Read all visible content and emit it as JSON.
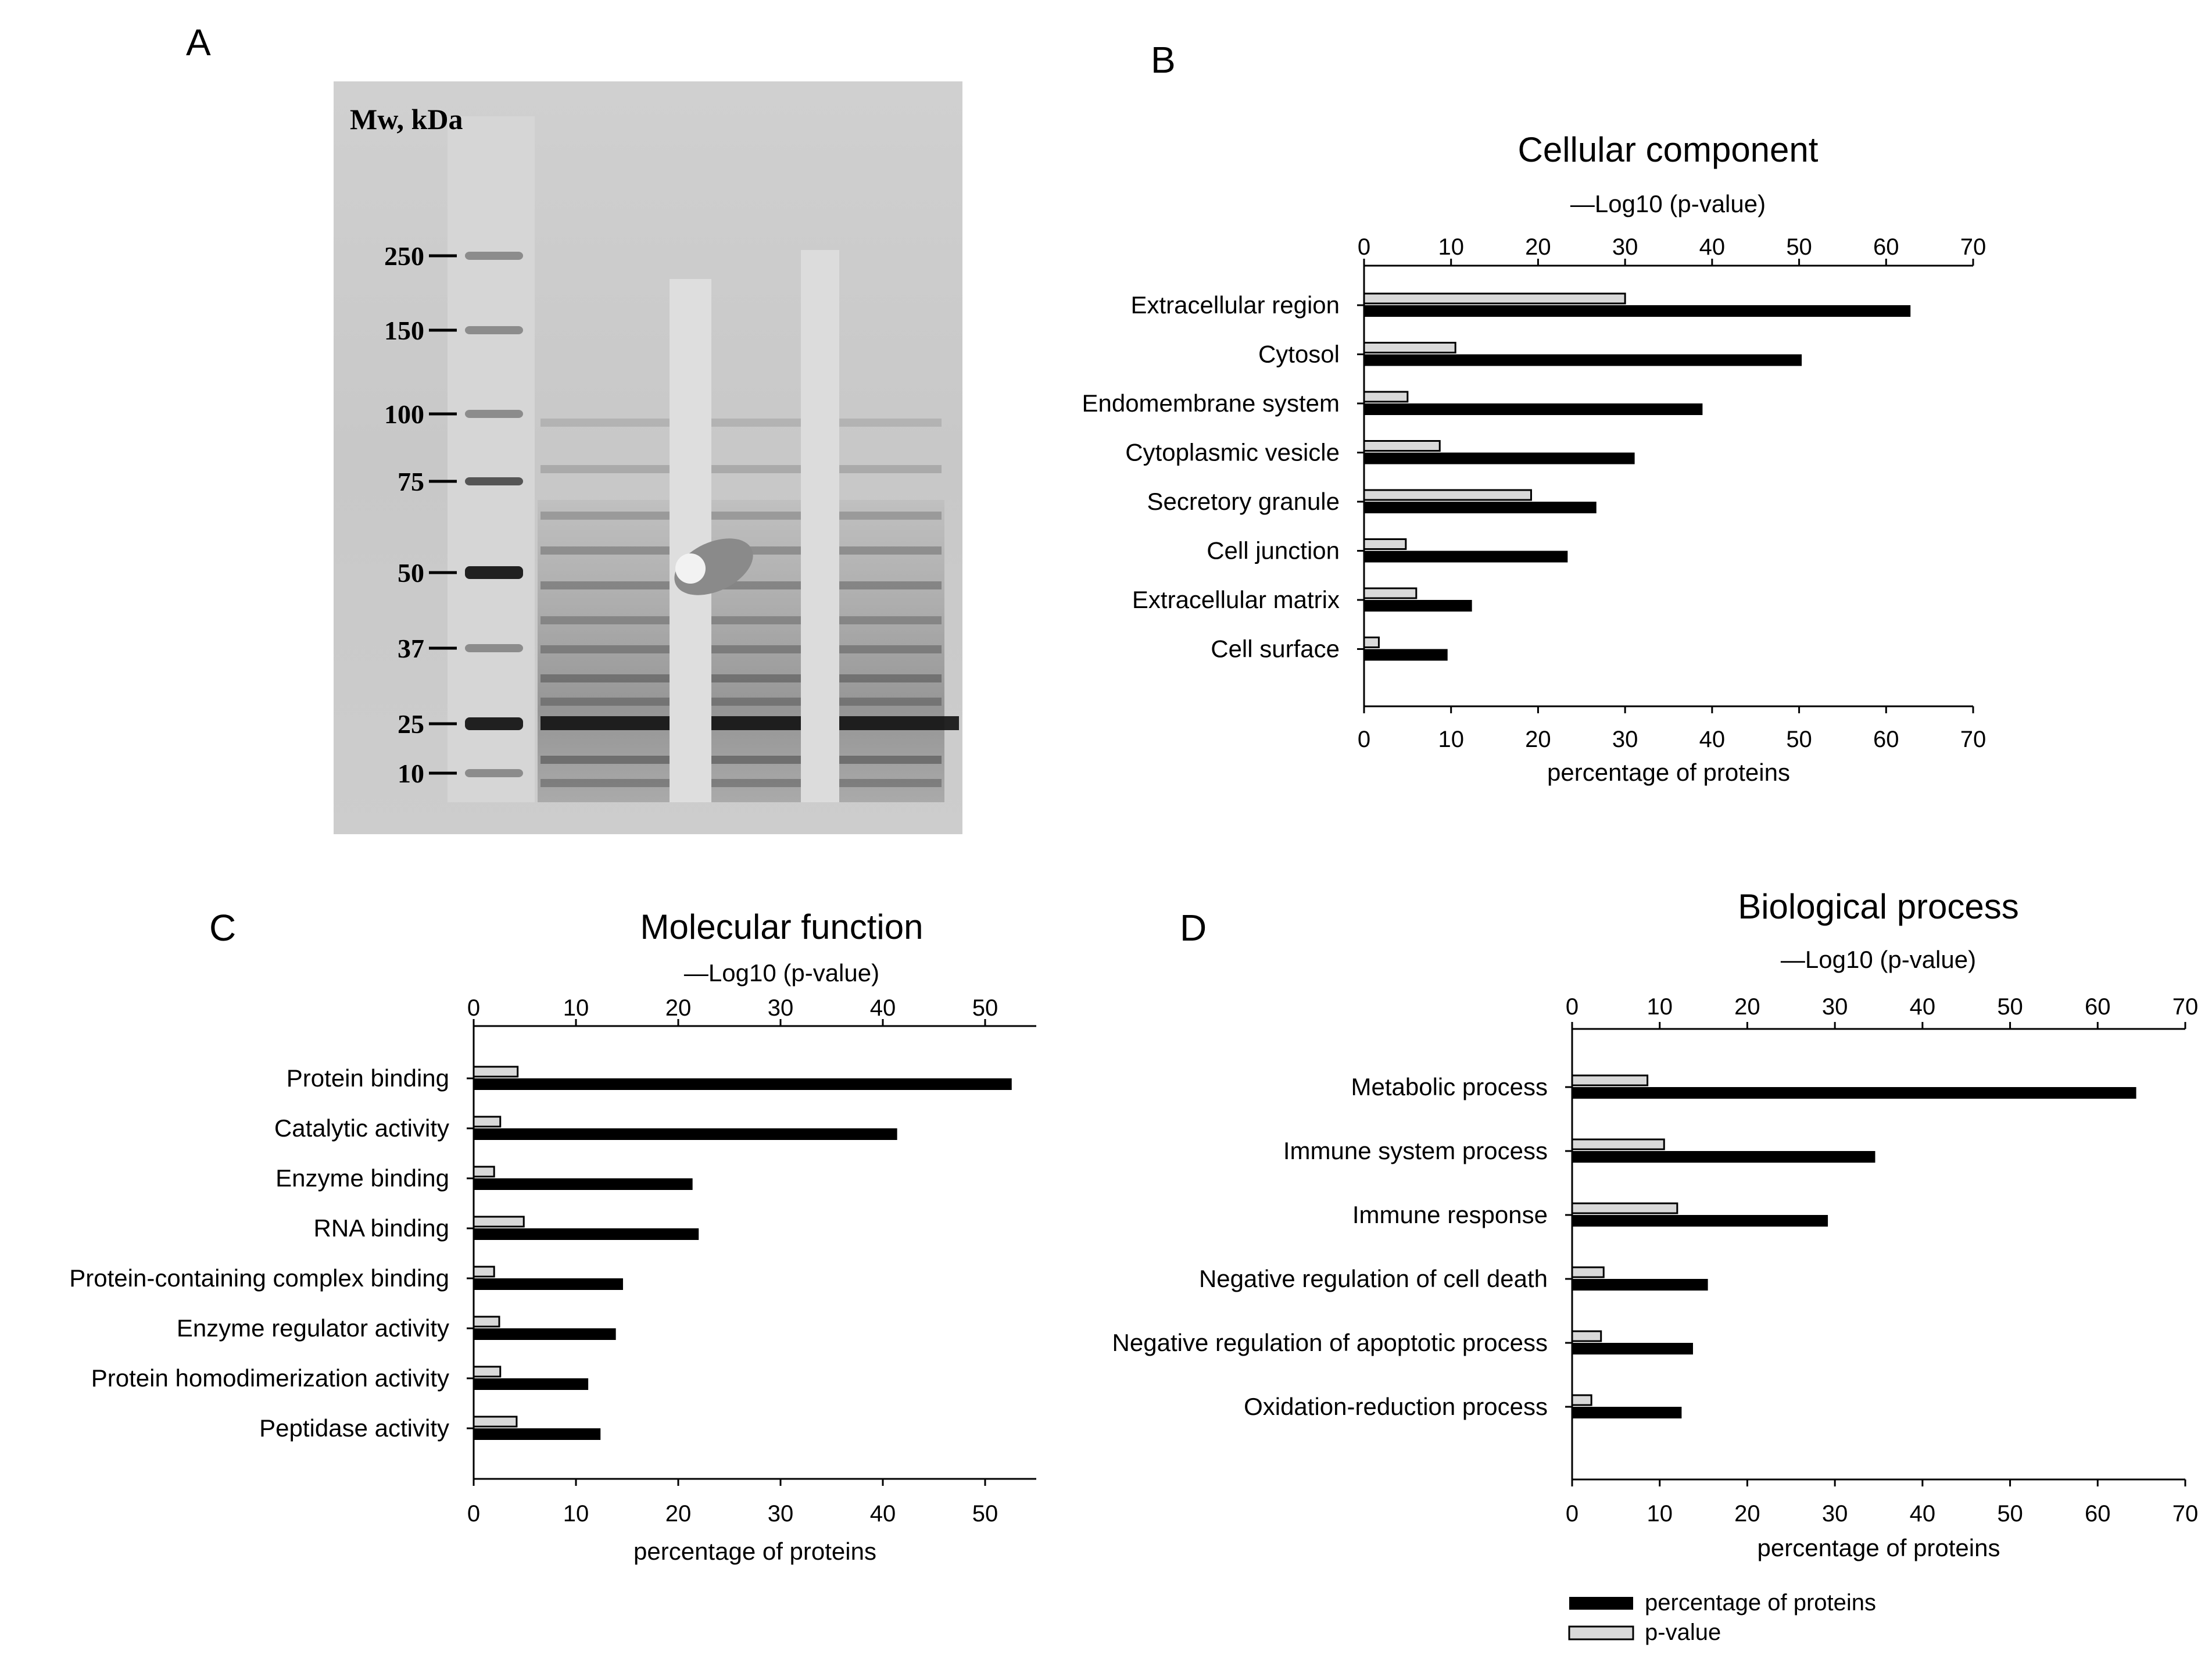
{
  "panel_letters": [
    "A",
    "B",
    "C",
    "D"
  ],
  "gel": {
    "header": "Mw, kDa",
    "markers": [
      "250",
      "150",
      "100",
      "75",
      "50",
      "37",
      "25",
      "10"
    ]
  },
  "legend": {
    "percent": "percentage of proteins",
    "pvalue": "p-value",
    "colors": {
      "percent": "#000000",
      "pvalue": "#d9d9d9"
    }
  },
  "chart_data": [
    {
      "type": "bar",
      "orientation": "horizontal",
      "title": "Cellular component",
      "top_axis_label": "—Log10 (p-value)",
      "bottom_axis_label": "percentage of proteins",
      "xlim": [
        0,
        70
      ],
      "ticks": [
        0,
        10,
        20,
        30,
        40,
        50,
        60,
        70
      ],
      "categories": [
        "Extracellular region",
        "Cytosol",
        "Endomembrane system",
        "Cytoplasmic vesicle",
        "Secretory granule",
        "Cell junction",
        "Extracellular matrix",
        "Cell surface"
      ],
      "series": [
        {
          "name": "p-value",
          "values": [
            30,
            10.5,
            5,
            8.7,
            19.2,
            4.8,
            6,
            1.7
          ]
        },
        {
          "name": "percentage of proteins",
          "values": [
            62.8,
            50.3,
            38.9,
            31.1,
            26.7,
            23.4,
            12.4,
            9.6
          ]
        }
      ]
    },
    {
      "type": "bar",
      "orientation": "horizontal",
      "title": "Molecular function",
      "top_axis_label": "—Log10 (p-value)",
      "bottom_axis_label": "percentage of proteins",
      "xlim": [
        0,
        55
      ],
      "ticks": [
        0,
        10,
        20,
        30,
        40,
        50
      ],
      "categories": [
        "Protein binding",
        "Catalytic activity",
        "Enzyme binding",
        "RNA binding",
        "Protein-containing complex binding",
        "Enzyme regulator activity",
        "Protein homodimerization activity",
        "Peptidase activity"
      ],
      "series": [
        {
          "name": "p-value",
          "values": [
            4.3,
            2.6,
            2,
            4.9,
            2,
            2.5,
            2.6,
            4.2
          ]
        },
        {
          "name": "percentage of proteins",
          "values": [
            52.6,
            41.4,
            21.4,
            22,
            14.6,
            13.9,
            11.2,
            12.4
          ]
        }
      ]
    },
    {
      "type": "bar",
      "orientation": "horizontal",
      "title": "Biological process",
      "top_axis_label": "—Log10 (p-value)",
      "bottom_axis_label": "percentage of proteins",
      "xlim": [
        0,
        70
      ],
      "ticks": [
        0,
        10,
        20,
        30,
        40,
        50,
        60,
        70
      ],
      "categories": [
        "Metabolic process",
        "Immune system process",
        "Immune response",
        "Negative regulation of cell death",
        "Negative regulation of apoptotic process",
        "Oxidation-reduction process"
      ],
      "series": [
        {
          "name": "p-value",
          "values": [
            8.6,
            10.5,
            12,
            3.6,
            3.3,
            2.2
          ]
        },
        {
          "name": "percentage of proteins",
          "values": [
            64.4,
            34.6,
            29.2,
            15.5,
            13.8,
            12.5
          ]
        }
      ]
    }
  ]
}
